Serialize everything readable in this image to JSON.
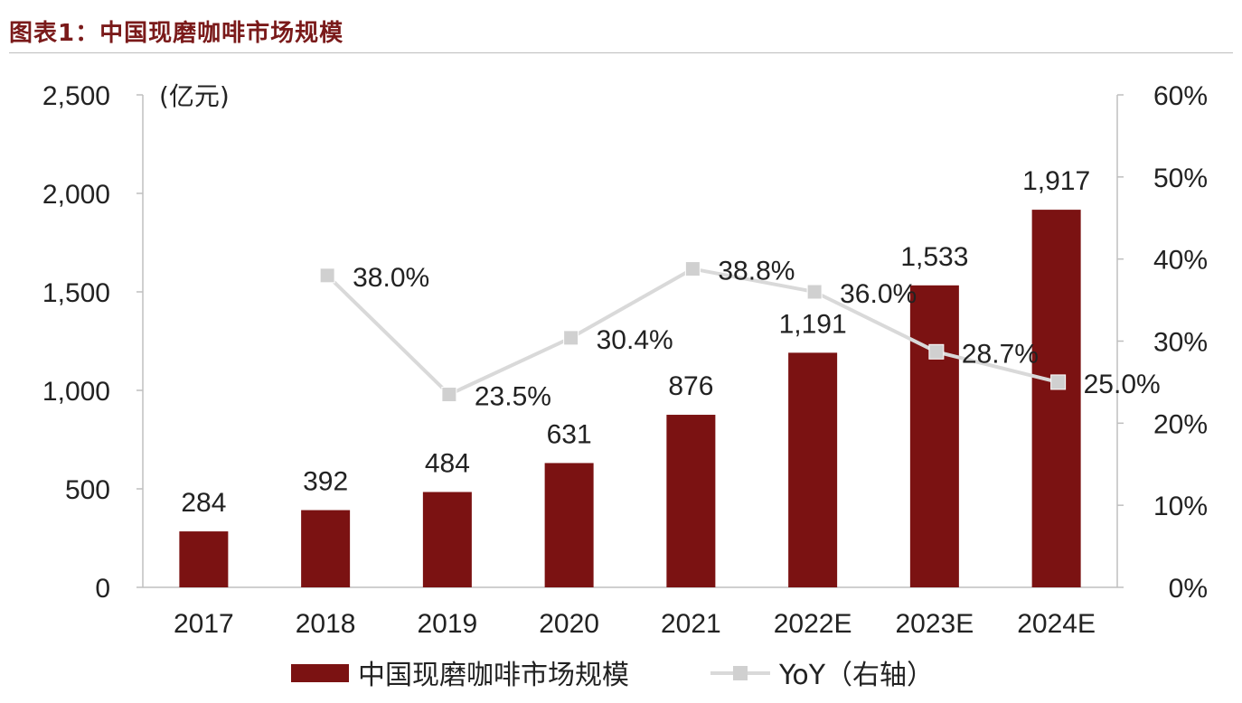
{
  "figure_title": "图表1：中国现磨咖啡市场规模",
  "colors": {
    "bar": "#7b1212",
    "line": "#d9d9d9",
    "marker": "#d0d0d0",
    "title": "#7a1a1a"
  },
  "chart_data": {
    "type": "bar",
    "categories": [
      "2017",
      "2018",
      "2019",
      "2020",
      "2021",
      "2022E",
      "2023E",
      "2024E"
    ],
    "series": [
      {
        "name": "中国现磨咖啡市场规模",
        "type": "bar",
        "axis": "left",
        "values": [
          284,
          392,
          484,
          631,
          876,
          1191,
          1533,
          1917
        ],
        "labels": [
          "284",
          "392",
          "484",
          "631",
          "876",
          "1,191",
          "1,533",
          "1,917"
        ]
      },
      {
        "name": "YoY（右轴）",
        "type": "line",
        "axis": "right",
        "values": [
          null,
          38.0,
          23.5,
          30.4,
          38.8,
          36.0,
          28.7,
          25.0
        ],
        "labels": [
          "",
          "38.0%",
          "23.5%",
          "30.4%",
          "38.8%",
          "36.0%",
          "28.7%",
          "25.0%"
        ]
      }
    ],
    "y_left": {
      "unit_label": "(亿元)",
      "range": [
        0,
        2500
      ],
      "ticks": [
        0,
        500,
        1000,
        1500,
        2000,
        2500
      ],
      "tick_labels": [
        "0",
        "500",
        "1,000",
        "1,500",
        "2,000",
        "2,500"
      ]
    },
    "y_right": {
      "range": [
        0,
        60
      ],
      "ticks": [
        0,
        10,
        20,
        30,
        40,
        50,
        60
      ],
      "tick_labels": [
        "0%",
        "10%",
        "20%",
        "30%",
        "40%",
        "50%",
        "60%"
      ]
    },
    "grid": false,
    "legend": "bottom"
  }
}
